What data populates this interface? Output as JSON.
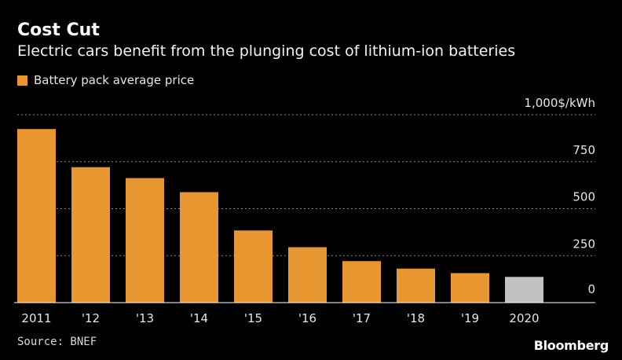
{
  "header": {
    "title": "Cost Cut",
    "subtitle": "Electric cars benefit from the plunging cost of lithium-ion batteries"
  },
  "legend": {
    "label": "Battery pack average price"
  },
  "footer": {
    "source": "Source: BNEF",
    "brand": "Bloomberg"
  },
  "colors": {
    "bar": "#e8962f",
    "highlight": "#c2c2c2",
    "background": "#000000",
    "grid": "#8a8a8a"
  },
  "chart_data": {
    "type": "bar",
    "title": "Cost Cut",
    "subtitle": "Electric cars benefit from the plunging cost of lithium-ion batteries",
    "categories": [
      "2011",
      "'12",
      "'13",
      "'14",
      "'15",
      "'16",
      "'17",
      "'18",
      "'19",
      "2020"
    ],
    "series": [
      {
        "name": "Battery pack average price",
        "values": [
          924,
          721,
          663,
          588,
          384,
          295,
          221,
          181,
          157,
          137
        ]
      }
    ],
    "highlight_index": 9,
    "ylim": [
      0,
      1000
    ],
    "yticks": [
      0,
      250,
      500,
      750,
      1000
    ],
    "ytick_labels": [
      "0",
      "250",
      "500",
      "750",
      "1,000$/kWh"
    ],
    "yaxis_side": "right",
    "xlabel": "",
    "ylabel": "$/kWh",
    "grid": true
  }
}
